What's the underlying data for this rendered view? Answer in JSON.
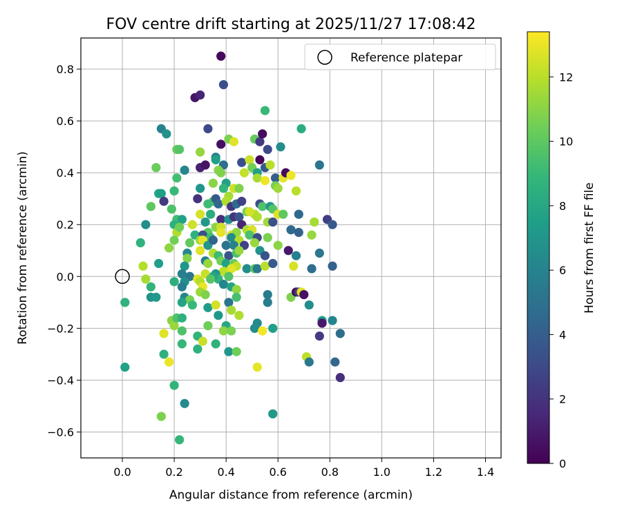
{
  "chart_data": {
    "type": "scatter",
    "title": "FOV centre drift starting at 2025/11/27 17:08:42",
    "xlabel": "Angular distance from reference (arcmin)",
    "ylabel": "Rotation from reference (arcmin)",
    "xlim": [
      -0.16,
      1.46
    ],
    "ylim": [
      -0.7,
      0.92
    ],
    "xticks": [
      0.0,
      0.2,
      0.4,
      0.6,
      0.8,
      1.0,
      1.2,
      1.4
    ],
    "xtick_labels": [
      "0.0",
      "0.2",
      "0.4",
      "0.6",
      "0.8",
      "1.0",
      "1.2",
      "1.4"
    ],
    "yticks": [
      -0.6,
      -0.4,
      -0.2,
      0.0,
      0.2,
      0.4,
      0.6,
      0.8
    ],
    "ytick_labels": [
      "−0.6",
      "−0.4",
      "−0.2",
      "0.0",
      "0.2",
      "0.4",
      "0.6",
      "0.8"
    ],
    "grid": true,
    "legend": {
      "position": "top-right",
      "entries": [
        {
          "label": "Reference platepar",
          "marker": "open-circle"
        }
      ]
    },
    "reference_point": {
      "x": 0.0,
      "y": 0.0
    },
    "colorbar": {
      "label": "Hours from first FF file",
      "colormap": "viridis",
      "range": [
        0,
        13.4
      ],
      "ticks": [
        0,
        2,
        4,
        6,
        8,
        10,
        12
      ],
      "tick_labels": [
        "0",
        "2",
        "4",
        "6",
        "8",
        "10",
        "12"
      ]
    },
    "colormap_stops": [
      "#440154",
      "#482878",
      "#3e4989",
      "#31688e",
      "#26828e",
      "#1f9e89",
      "#35b779",
      "#6ece58",
      "#b5de2b",
      "#fde725"
    ],
    "points": [
      [
        0.38,
        0.85,
        0.3
      ],
      [
        0.39,
        0.74,
        3.2
      ],
      [
        0.28,
        0.69,
        0.8
      ],
      [
        0.3,
        0.7,
        1.4
      ],
      [
        0.55,
        0.64,
        9.0
      ],
      [
        0.15,
        0.57,
        6.0
      ],
      [
        0.17,
        0.55,
        6.8
      ],
      [
        0.33,
        0.57,
        3.0
      ],
      [
        0.69,
        0.57,
        8.2
      ],
      [
        0.38,
        0.51,
        0.5
      ],
      [
        0.41,
        0.53,
        10.7
      ],
      [
        0.43,
        0.52,
        12.8
      ],
      [
        0.51,
        0.53,
        10.2
      ],
      [
        0.53,
        0.52,
        2.3
      ],
      [
        0.54,
        0.55,
        0.4
      ],
      [
        0.56,
        0.49,
        3.0
      ],
      [
        0.61,
        0.5,
        6.5
      ],
      [
        0.21,
        0.49,
        10.2
      ],
      [
        0.22,
        0.49,
        9.8
      ],
      [
        0.3,
        0.48,
        11.2
      ],
      [
        0.36,
        0.46,
        6.0
      ],
      [
        0.39,
        0.43,
        4.8
      ],
      [
        0.46,
        0.44,
        3.3
      ],
      [
        0.49,
        0.45,
        12.3
      ],
      [
        0.5,
        0.42,
        10.5
      ],
      [
        0.52,
        0.4,
        7.5
      ],
      [
        0.53,
        0.45,
        0.2
      ],
      [
        0.55,
        0.42,
        3.8
      ],
      [
        0.57,
        0.43,
        12.0
      ],
      [
        0.13,
        0.42,
        10.3
      ],
      [
        0.24,
        0.41,
        6.2
      ],
      [
        0.3,
        0.42,
        1.2
      ],
      [
        0.32,
        0.43,
        0.7
      ],
      [
        0.37,
        0.41,
        11.0
      ],
      [
        0.36,
        0.45,
        7.6
      ],
      [
        0.38,
        0.4,
        10.8
      ],
      [
        0.47,
        0.4,
        12.2
      ],
      [
        0.52,
        0.38,
        11.6
      ],
      [
        0.55,
        0.37,
        13.1
      ],
      [
        0.59,
        0.38,
        4.0
      ],
      [
        0.62,
        0.38,
        12.9
      ],
      [
        0.63,
        0.4,
        0.4
      ],
      [
        0.65,
        0.39,
        13.1
      ],
      [
        0.76,
        0.43,
        5.2
      ],
      [
        0.21,
        0.38,
        9.3
      ],
      [
        0.35,
        0.36,
        11.0
      ],
      [
        0.4,
        0.36,
        7.7
      ],
      [
        0.43,
        0.34,
        12.4
      ],
      [
        0.45,
        0.34,
        10.8
      ],
      [
        0.3,
        0.34,
        7.0
      ],
      [
        0.59,
        0.35,
        10.6
      ],
      [
        0.6,
        0.34,
        11.4
      ],
      [
        0.67,
        0.33,
        12.0
      ],
      [
        0.2,
        0.33,
        9.0
      ],
      [
        0.14,
        0.32,
        8.0
      ],
      [
        0.15,
        0.32,
        7.5
      ],
      [
        0.39,
        0.34,
        8.8
      ],
      [
        0.41,
        0.31,
        11.6
      ],
      [
        0.35,
        0.29,
        9.6
      ],
      [
        0.16,
        0.29,
        2.3
      ],
      [
        0.29,
        0.3,
        2.0
      ],
      [
        0.33,
        0.28,
        9.2
      ],
      [
        0.36,
        0.3,
        3.8
      ],
      [
        0.37,
        0.28,
        4.4
      ],
      [
        0.4,
        0.29,
        11.8
      ],
      [
        0.42,
        0.27,
        2.2
      ],
      [
        0.44,
        0.28,
        4.7
      ],
      [
        0.46,
        0.29,
        2.6
      ],
      [
        0.48,
        0.25,
        10.5
      ],
      [
        0.51,
        0.24,
        12.0
      ],
      [
        0.53,
        0.28,
        3.2
      ],
      [
        0.54,
        0.27,
        9.6
      ],
      [
        0.57,
        0.27,
        7.2
      ],
      [
        0.58,
        0.26,
        9.8
      ],
      [
        0.11,
        0.27,
        10.0
      ],
      [
        0.19,
        0.26,
        9.6
      ],
      [
        0.21,
        0.22,
        9.3
      ],
      [
        0.23,
        0.22,
        7.7
      ],
      [
        0.3,
        0.24,
        12.6
      ],
      [
        0.34,
        0.24,
        8.3
      ],
      [
        0.38,
        0.22,
        1.8
      ],
      [
        0.41,
        0.22,
        6.8
      ],
      [
        0.43,
        0.23,
        2.0
      ],
      [
        0.45,
        0.23,
        3.6
      ],
      [
        0.49,
        0.25,
        12.5
      ],
      [
        0.52,
        0.23,
        11.8
      ],
      [
        0.56,
        0.21,
        11.5
      ],
      [
        0.58,
        0.21,
        3.4
      ],
      [
        0.6,
        0.24,
        12.8
      ],
      [
        0.62,
        0.24,
        10.0
      ],
      [
        0.68,
        0.24,
        4.5
      ],
      [
        0.79,
        0.22,
        2.5
      ],
      [
        0.81,
        0.2,
        3.8
      ],
      [
        0.74,
        0.21,
        11.6
      ],
      [
        0.09,
        0.2,
        6.6
      ],
      [
        0.2,
        0.2,
        8.5
      ],
      [
        0.27,
        0.2,
        12.4
      ],
      [
        0.32,
        0.21,
        7.2
      ],
      [
        0.33,
        0.17,
        10.0
      ],
      [
        0.36,
        0.19,
        11.0
      ],
      [
        0.38,
        0.19,
        12.4
      ],
      [
        0.38,
        0.17,
        12.9
      ],
      [
        0.42,
        0.16,
        12.5
      ],
      [
        0.44,
        0.17,
        11.2
      ],
      [
        0.46,
        0.2,
        1.4
      ],
      [
        0.48,
        0.18,
        11.7
      ],
      [
        0.5,
        0.18,
        12.6
      ],
      [
        0.65,
        0.18,
        4.6
      ],
      [
        0.68,
        0.17,
        4.2
      ],
      [
        0.21,
        0.17,
        11.8
      ],
      [
        0.22,
        0.19,
        10.4
      ],
      [
        0.28,
        0.16,
        8.5
      ],
      [
        0.31,
        0.16,
        3.4
      ],
      [
        0.34,
        0.15,
        9.2
      ],
      [
        0.42,
        0.15,
        6.5
      ],
      [
        0.45,
        0.14,
        11.9
      ],
      [
        0.49,
        0.16,
        9.6
      ],
      [
        0.52,
        0.15,
        3.1
      ],
      [
        0.56,
        0.15,
        10.7
      ],
      [
        0.73,
        0.16,
        11.3
      ],
      [
        0.07,
        0.13,
        8.6
      ],
      [
        0.2,
        0.14,
        10.5
      ],
      [
        0.26,
        0.13,
        10.1
      ],
      [
        0.3,
        0.14,
        11.3
      ],
      [
        0.31,
        0.14,
        12.9
      ],
      [
        0.33,
        0.12,
        7.1
      ],
      [
        0.35,
        0.14,
        4.3
      ],
      [
        0.4,
        0.12,
        5.1
      ],
      [
        0.43,
        0.12,
        6.0
      ],
      [
        0.47,
        0.12,
        2.6
      ],
      [
        0.51,
        0.13,
        11.3
      ],
      [
        0.53,
        0.1,
        6.9
      ],
      [
        0.6,
        0.12,
        11.0
      ],
      [
        0.64,
        0.1,
        0.9
      ],
      [
        0.18,
        0.11,
        11.1
      ],
      [
        0.25,
        0.09,
        6.2
      ],
      [
        0.3,
        0.1,
        12.8
      ],
      [
        0.35,
        0.09,
        11.8
      ],
      [
        0.37,
        0.08,
        9.1
      ],
      [
        0.41,
        0.08,
        3.6
      ],
      [
        0.44,
        0.09,
        9.5
      ],
      [
        0.45,
        0.1,
        11.3
      ],
      [
        0.55,
        0.08,
        3.5
      ],
      [
        0.67,
        0.08,
        5.9
      ],
      [
        0.25,
        0.07,
        10.9
      ],
      [
        0.32,
        0.06,
        5.8
      ],
      [
        0.33,
        0.05,
        11.3
      ],
      [
        0.38,
        0.06,
        10.5
      ],
      [
        0.4,
        0.05,
        7.6
      ],
      [
        0.43,
        0.05,
        10.3
      ],
      [
        0.44,
        0.04,
        12.2
      ],
      [
        0.48,
        0.03,
        6.5
      ],
      [
        0.51,
        0.03,
        9.9
      ],
      [
        0.52,
        0.03,
        5.4
      ],
      [
        0.55,
        0.04,
        12.0
      ],
      [
        0.58,
        0.05,
        3.8
      ],
      [
        0.66,
        0.04,
        12.6
      ],
      [
        0.76,
        0.09,
        5.3
      ],
      [
        0.73,
        0.03,
        4.8
      ],
      [
        0.81,
        0.04,
        4.2
      ],
      [
        0.14,
        0.05,
        7.5
      ],
      [
        0.24,
        0.04,
        7.0
      ],
      [
        0.08,
        0.04,
        11.9
      ],
      [
        0.39,
        0.02,
        12.1
      ],
      [
        0.42,
        0.03,
        12.8
      ],
      [
        0.36,
        0.01,
        7.0
      ],
      [
        0.32,
        0.01,
        12.3
      ],
      [
        0.23,
        0.01,
        5.8
      ],
      [
        0.26,
        0.0,
        5.3
      ],
      [
        0.37,
        -0.01,
        8.6
      ],
      [
        0.41,
        0.0,
        9.7
      ],
      [
        0.35,
        0.0,
        7.8
      ],
      [
        0.34,
        -0.01,
        9.8
      ],
      [
        0.09,
        -0.01,
        11.6
      ],
      [
        0.11,
        -0.04,
        8.7
      ],
      [
        0.2,
        -0.02,
        8.4
      ],
      [
        0.24,
        -0.02,
        6.6
      ],
      [
        0.29,
        -0.01,
        12.8
      ],
      [
        0.3,
        -0.02,
        11.9
      ],
      [
        0.31,
        -0.04,
        13.0
      ],
      [
        0.39,
        -0.03,
        6.1
      ],
      [
        0.42,
        -0.04,
        7.8
      ],
      [
        0.44,
        -0.05,
        11.2
      ],
      [
        0.44,
        -0.08,
        9.4
      ],
      [
        0.56,
        -0.07,
        5.6
      ],
      [
        0.65,
        -0.08,
        10.8
      ],
      [
        0.67,
        -0.06,
        0.4
      ],
      [
        0.68,
        -0.06,
        2.3
      ],
      [
        0.69,
        -0.06,
        12.8
      ],
      [
        0.7,
        -0.07,
        0.6
      ],
      [
        0.72,
        -0.11,
        6.6
      ],
      [
        0.11,
        -0.08,
        6.8
      ],
      [
        0.13,
        -0.08,
        7.2
      ],
      [
        0.23,
        -0.04,
        5.7
      ],
      [
        0.24,
        -0.08,
        6.1
      ],
      [
        0.26,
        -0.09,
        10.6
      ],
      [
        0.27,
        -0.11,
        9.0
      ],
      [
        0.3,
        -0.06,
        11.4
      ],
      [
        0.32,
        -0.07,
        10.8
      ],
      [
        0.33,
        -0.12,
        7.4
      ],
      [
        0.36,
        -0.11,
        12.5
      ],
      [
        0.41,
        -0.1,
        5.2
      ],
      [
        0.42,
        -0.13,
        11.6
      ],
      [
        0.56,
        -0.1,
        5.7
      ],
      [
        0.01,
        -0.1,
        8.6
      ],
      [
        0.23,
        -0.1,
        7.8
      ],
      [
        0.19,
        -0.17,
        11.0
      ],
      [
        0.2,
        -0.19,
        11.3
      ],
      [
        0.21,
        -0.16,
        9.6
      ],
      [
        0.23,
        -0.16,
        8.5
      ],
      [
        0.37,
        -0.15,
        7.2
      ],
      [
        0.45,
        -0.15,
        11.8
      ],
      [
        0.33,
        -0.19,
        10.4
      ],
      [
        0.4,
        -0.19,
        8.0
      ],
      [
        0.52,
        -0.18,
        6.4
      ],
      [
        0.51,
        -0.2,
        6.5
      ],
      [
        0.58,
        -0.2,
        7.6
      ],
      [
        0.77,
        -0.17,
        7.6
      ],
      [
        0.77,
        -0.18,
        4.3
      ],
      [
        0.81,
        -0.17,
        6.1
      ],
      [
        0.77,
        -0.18,
        0.9
      ],
      [
        0.76,
        -0.23,
        2.4
      ],
      [
        0.84,
        -0.22,
        4.8
      ],
      [
        0.23,
        -0.21,
        9.6
      ],
      [
        0.29,
        -0.23,
        8.7
      ],
      [
        0.36,
        -0.26,
        8.6
      ],
      [
        0.39,
        -0.21,
        11.1
      ],
      [
        0.42,
        -0.21,
        10.7
      ],
      [
        0.54,
        -0.21,
        13.2
      ],
      [
        0.16,
        -0.22,
        12.8
      ],
      [
        0.23,
        -0.26,
        8.9
      ],
      [
        0.29,
        -0.28,
        8.6
      ],
      [
        0.31,
        -0.25,
        12.3
      ],
      [
        0.41,
        -0.29,
        7.1
      ],
      [
        0.44,
        -0.29,
        10.4
      ],
      [
        0.16,
        -0.3,
        8.5
      ],
      [
        0.18,
        -0.33,
        13.0
      ],
      [
        0.71,
        -0.31,
        12.1
      ],
      [
        0.72,
        -0.33,
        5.3
      ],
      [
        0.82,
        -0.33,
        4.4
      ],
      [
        0.52,
        -0.35,
        12.9
      ],
      [
        0.01,
        -0.35,
        7.6
      ],
      [
        0.84,
        -0.39,
        1.8
      ],
      [
        0.2,
        -0.42,
        8.7
      ],
      [
        0.24,
        -0.49,
        6.4
      ],
      [
        0.58,
        -0.53,
        7.1
      ],
      [
        0.15,
        -0.54,
        10.7
      ],
      [
        0.22,
        -0.63,
        8.9
      ]
    ]
  }
}
